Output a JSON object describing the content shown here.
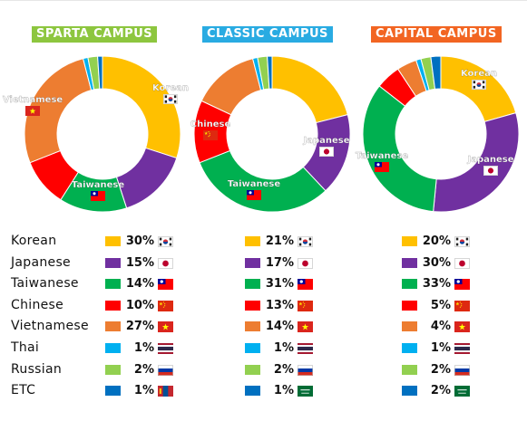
{
  "colors": {
    "Korean": "#FFC000",
    "Japanese": "#7030A0",
    "Taiwanese": "#00B050",
    "Chinese": "#FF0000",
    "Vietnamese": "#ED7D31",
    "Thai": "#00B0F0",
    "Russian": "#92D050",
    "ETC": "#0070C0"
  },
  "badges": [
    {
      "label": "SPARTA CAMPUS",
      "color": "#8DC63F"
    },
    {
      "label": "CLASSIC CAMPUS",
      "color": "#29ABE2"
    },
    {
      "label": "CAPITAL CAMPUS",
      "color": "#F26522"
    }
  ],
  "chart_data": [
    {
      "type": "pie",
      "title": "SPARTA CAMPUS",
      "categories": [
        "Korean",
        "Japanese",
        "Taiwanese",
        "Chinese",
        "Vietnamese",
        "Thai",
        "Russian",
        "ETC"
      ],
      "values": [
        30,
        15,
        14,
        10,
        27,
        1,
        2,
        1
      ],
      "slice_labels": {
        "Korean": "Korean",
        "Taiwanese": "Taiwanese",
        "Vietnamese": "Vietnamese"
      },
      "etc_flag": "mongolia"
    },
    {
      "type": "pie",
      "title": "CLASSIC CAMPUS",
      "categories": [
        "Korean",
        "Japanese",
        "Taiwanese",
        "Chinese",
        "Vietnamese",
        "Thai",
        "Russian",
        "ETC"
      ],
      "values": [
        21,
        17,
        31,
        13,
        14,
        1,
        2,
        1
      ],
      "slice_labels": {
        "Japanese": "Japanese",
        "Taiwanese": "Taiwanese",
        "Chinese": "Chinese"
      },
      "etc_flag": "saudi"
    },
    {
      "type": "pie",
      "title": "CAPITAL CAMPUS",
      "categories": [
        "Korean",
        "Japanese",
        "Taiwanese",
        "Chinese",
        "Vietnamese",
        "Thai",
        "Russian",
        "ETC"
      ],
      "values": [
        20,
        30,
        33,
        5,
        4,
        1,
        2,
        2
      ],
      "slice_labels": {
        "Korean": "Korean",
        "Japanese": "Japanese",
        "Taiwanese": "Taiwanese"
      },
      "etc_flag": "saudi"
    }
  ],
  "flags": {
    "Korean": "korea",
    "Japanese": "japan",
    "Taiwanese": "taiwan",
    "Chinese": "china",
    "Vietnamese": "vietnam",
    "Thai": "thailand",
    "Russian": "russia"
  }
}
